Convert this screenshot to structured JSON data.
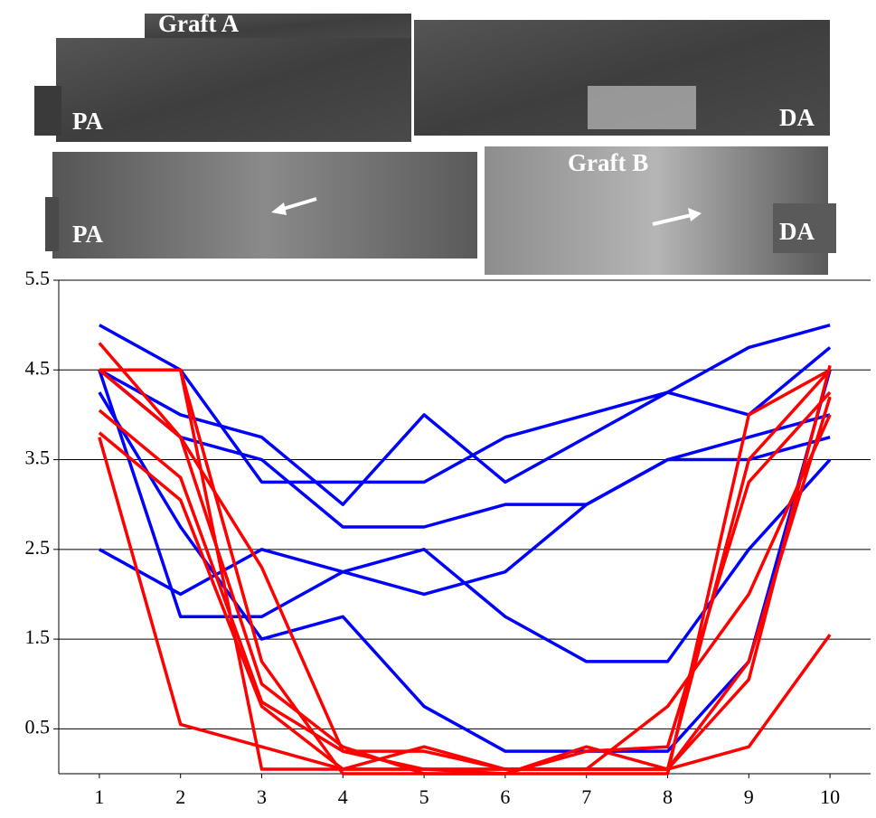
{
  "panels": [
    {
      "labels": [
        "Graft A",
        "PA",
        "DA"
      ]
    },
    {
      "labels": [
        "PA",
        "Graft B",
        "DA"
      ]
    }
  ],
  "chart_data": {
    "type": "line",
    "x": [
      1,
      2,
      3,
      4,
      5,
      6,
      7,
      8,
      9,
      10
    ],
    "xlim": [
      0.5,
      10.5
    ],
    "xticks": [
      1,
      2,
      3,
      4,
      5,
      6,
      7,
      8,
      9,
      10
    ],
    "ylim": [
      0,
      5.5
    ],
    "yticks": [
      0.5,
      1.5,
      2.5,
      3.5,
      4.5,
      5.5
    ],
    "grid": true,
    "series": [
      {
        "color": "#0000ff",
        "values": [
          4.5,
          3.75,
          3.5,
          2.75,
          2.75,
          3.0,
          3.0,
          3.5,
          3.75,
          4.0
        ]
      },
      {
        "color": "#0000ff",
        "values": [
          4.5,
          4.0,
          3.75,
          3.0,
          4.0,
          3.25,
          3.75,
          4.25,
          4.0,
          4.75
        ]
      },
      {
        "color": "#0000ff",
        "values": [
          5.0,
          4.5,
          3.25,
          3.25,
          3.25,
          3.75,
          4.0,
          4.25,
          4.75,
          5.0
        ]
      },
      {
        "color": "#0000ff",
        "values": [
          2.5,
          2.0,
          2.5,
          2.25,
          2.0,
          2.25,
          3.0,
          3.5,
          3.5,
          3.75
        ]
      },
      {
        "color": "#0000ff",
        "values": [
          4.5,
          1.75,
          1.75,
          2.25,
          2.5,
          1.75,
          1.25,
          1.25,
          2.5,
          3.5
        ]
      },
      {
        "color": "#0000ff",
        "values": [
          4.25,
          2.75,
          1.5,
          1.75,
          0.75,
          0.25,
          0.25,
          0.25,
          1.25,
          4.5
        ]
      },
      {
        "color": "#ff0000",
        "values": [
          4.5,
          4.5,
          1.25,
          0.0,
          0.0,
          0.0,
          0.0,
          0.0,
          4.0,
          4.5
        ]
      },
      {
        "color": "#ff0000",
        "values": [
          4.8,
          3.75,
          2.3,
          0.25,
          0.25,
          0.05,
          0.05,
          0.05,
          3.5,
          4.5
        ]
      },
      {
        "color": "#ff0000",
        "values": [
          4.05,
          3.3,
          0.8,
          0.25,
          0.05,
          0.0,
          0.25,
          0.3,
          3.25,
          4.25
        ]
      },
      {
        "color": "#ff0000",
        "values": [
          3.8,
          3.05,
          0.75,
          0.05,
          0.3,
          0.05,
          0.05,
          0.75,
          2.0,
          4.0
        ]
      },
      {
        "color": "#ff0000",
        "values": [
          3.75,
          0.55,
          0.3,
          0.05,
          0.05,
          0.05,
          0.05,
          0.05,
          0.3,
          1.55
        ]
      },
      {
        "color": "#ff0000",
        "values": [
          4.5,
          4.5,
          0.05,
          0.05,
          0.05,
          0.05,
          0.05,
          0.05,
          1.05,
          4.55
        ]
      },
      {
        "color": "#ff0000",
        "values": [
          4.5,
          3.75,
          1.0,
          0.3,
          0.0,
          0.0,
          0.3,
          0.05,
          1.25,
          4.2
        ]
      }
    ]
  }
}
